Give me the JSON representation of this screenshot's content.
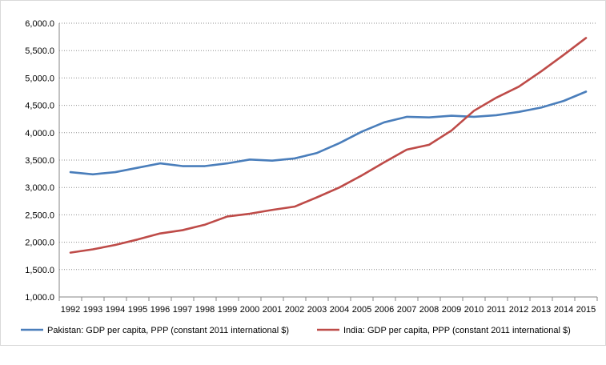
{
  "chart_data": {
    "type": "line",
    "title": "",
    "xlabel": "",
    "ylabel": "",
    "x": [
      "1992",
      "1993",
      "1994",
      "1995",
      "1996",
      "1997",
      "1998",
      "1999",
      "2000",
      "2001",
      "2002",
      "2003",
      "2004",
      "2005",
      "2006",
      "2007",
      "2008",
      "2009",
      "2010",
      "2011",
      "2012",
      "2013",
      "2014",
      "2015"
    ],
    "ylim": [
      1000,
      6000
    ],
    "yticks": [
      1000,
      1500,
      2000,
      2500,
      3000,
      3500,
      4000,
      4500,
      5000,
      5500,
      6000
    ],
    "ytick_labels": [
      "1,000.0",
      "1,500.0",
      "2,000.0",
      "2,500.0",
      "3,000.0",
      "3,500.0",
      "4,000.0",
      "4,500.0",
      "5,000.0",
      "5,500.0",
      "6,000.0"
    ],
    "grid": "horizontal dotted",
    "legend_position": "bottom",
    "series": [
      {
        "name": "Pakistan: GDP per capita, PPP (constant 2011 international $)",
        "color": "#4a7ebb",
        "values": [
          3280,
          3240,
          3280,
          3360,
          3440,
          3390,
          3390,
          3440,
          3510,
          3490,
          3530,
          3630,
          3810,
          4020,
          4190,
          4290,
          4280,
          4310,
          4290,
          4320,
          4380,
          4460,
          4580,
          4750
        ]
      },
      {
        "name": "India: GDP per capita, PPP (constant 2011 international $)",
        "color": "#be4b48",
        "values": [
          1810,
          1870,
          1950,
          2050,
          2160,
          2220,
          2320,
          2470,
          2520,
          2590,
          2650,
          2820,
          3000,
          3220,
          3460,
          3690,
          3780,
          4040,
          4400,
          4640,
          4840,
          5120,
          5420,
          5730
        ]
      }
    ]
  }
}
